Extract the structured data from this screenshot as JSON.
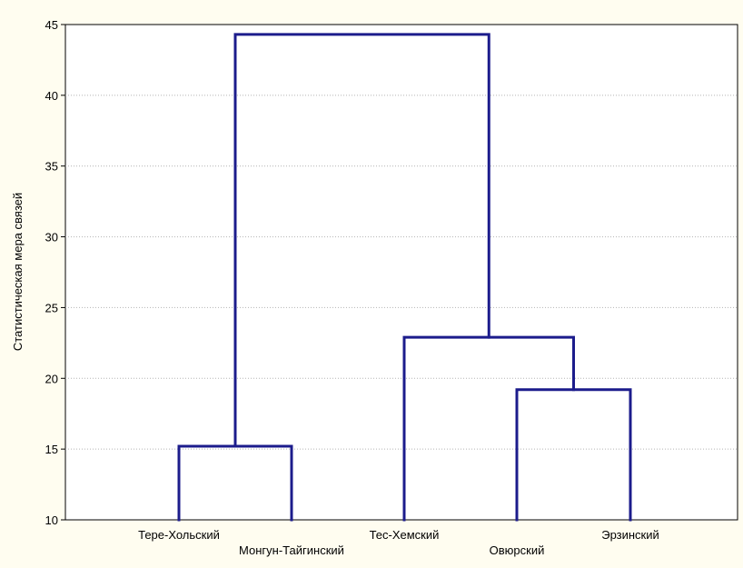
{
  "chart_data": {
    "type": "dendrogram",
    "title": "",
    "xlabel": "",
    "ylabel": "Статистическая мера связей",
    "ylim": [
      10,
      45
    ],
    "yticks": [
      10,
      15,
      20,
      25,
      30,
      35,
      40,
      45
    ],
    "grid": "horizontal",
    "leaves": [
      "Тере-Хольский",
      "Монгун-Тайгинский",
      "Тес-Хемский",
      "Овюрский",
      "Эрзинский"
    ],
    "merges": [
      {
        "left": "Тере-Хольский",
        "right": "Монгун-Тайгинский",
        "height": 15.2
      },
      {
        "left": "Овюрский",
        "right": "Эрзинский",
        "height": 19.2
      },
      {
        "left": "Тес-Хемский",
        "right": "Овюрский + Эрзинский",
        "height": 22.9
      },
      {
        "left": "Тере-Хольский + Монгун-Тайгинский",
        "right": "Тес-Хемский + Овюрский + Эрзинский",
        "height": 44.3
      }
    ],
    "colors": {
      "link": "#1c1c8c",
      "background": "#fffdf0",
      "plot": "#ffffff"
    }
  }
}
